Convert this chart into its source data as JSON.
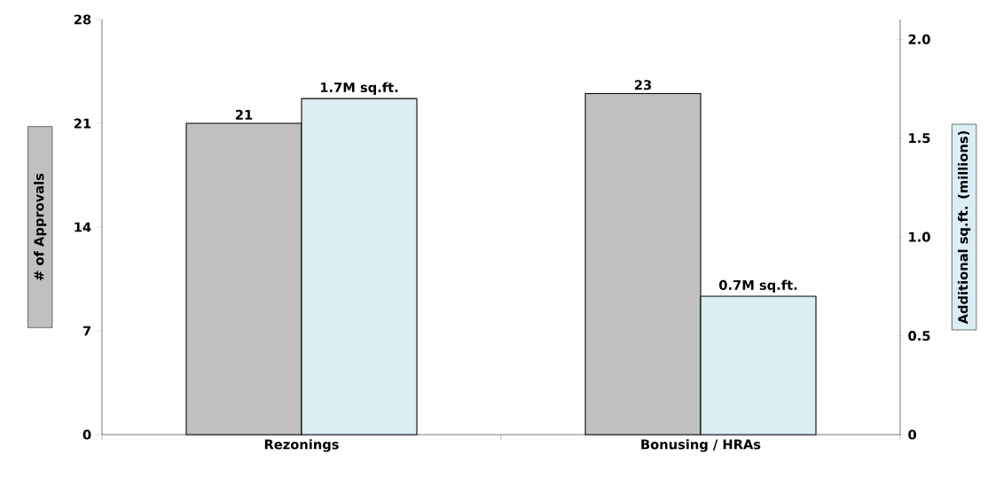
{
  "chart_data": {
    "type": "bar",
    "categories": [
      "Rezonings",
      "Bonusing / HRAs"
    ],
    "ylabel": "# of Approvals",
    "y2label": "Additional sq.ft. (millions)",
    "ylim": [
      0,
      28
    ],
    "yticks": [
      0,
      7,
      14,
      21,
      28
    ],
    "y2lim": [
      0,
      2.1
    ],
    "y2ticks": [
      0,
      0.5,
      {
        "value": 1,
        "label": "1.0"
      },
      {
        "value": 1.5,
        "label": "1.5"
      },
      {
        "value": 2,
        "label": "2.0"
      }
    ],
    "series": [
      {
        "color": "#c0c0c0",
        "values": [
          21,
          23
        ],
        "value_labels": [
          "21",
          "23"
        ]
      },
      {
        "color": "#daeef3",
        "values": [
          1.7,
          0.7
        ],
        "axis": "y2",
        "value_labels": [
          "1.7M sq.ft.",
          "0.7M sq.ft."
        ]
      }
    ]
  }
}
